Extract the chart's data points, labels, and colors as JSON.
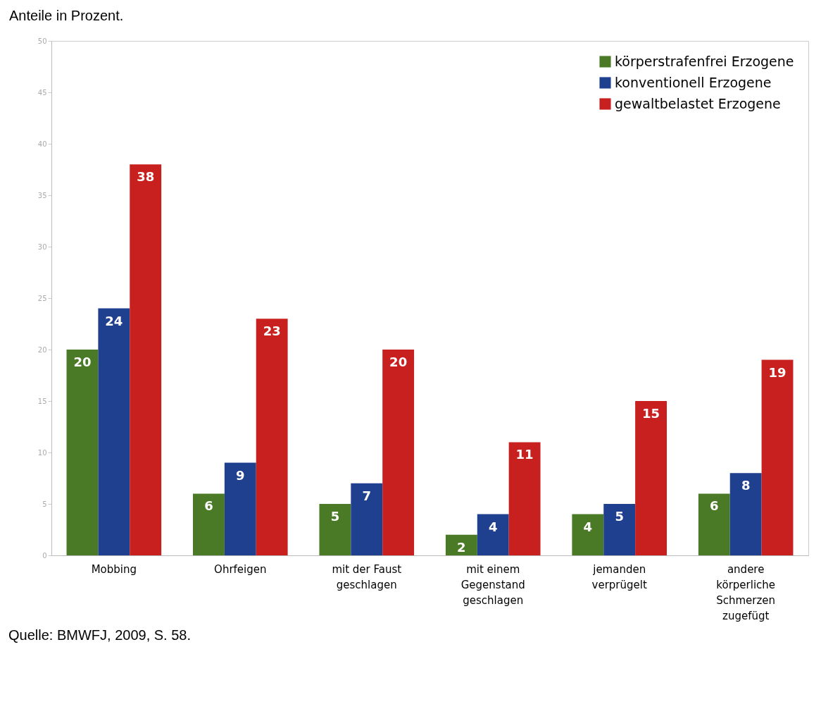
{
  "chart_data": {
    "type": "bar",
    "title": "Anteile in Prozent.",
    "categories": [
      "Mobbing",
      "Ohrfeigen",
      "mit der Faust geschlagen",
      "mit einem Gegenstand geschlagen",
      "jemanden verprügelt",
      "andere körperliche Schmerzen zugefügt"
    ],
    "series": [
      {
        "name": "körperstrafenfrei Erzogene",
        "color": "#4a7a25",
        "values": [
          20,
          6,
          5,
          2,
          4,
          6
        ]
      },
      {
        "name": "konventionell Erzogene",
        "color": "#1f3f8f",
        "values": [
          24,
          9,
          7,
          4,
          5,
          8
        ]
      },
      {
        "name": "gewaltbelastet Erzogene",
        "color": "#c8201f",
        "values": [
          38,
          23,
          20,
          11,
          15,
          19
        ]
      }
    ],
    "ylim": [
      0,
      50
    ],
    "yticks": [
      0,
      5,
      10,
      15,
      20,
      25,
      30,
      35,
      40,
      45,
      50
    ],
    "data_labels": true,
    "grid": false,
    "legend": "top right",
    "annotations": [
      "Quelle: BMWFJ, 2009, S. 58."
    ]
  }
}
